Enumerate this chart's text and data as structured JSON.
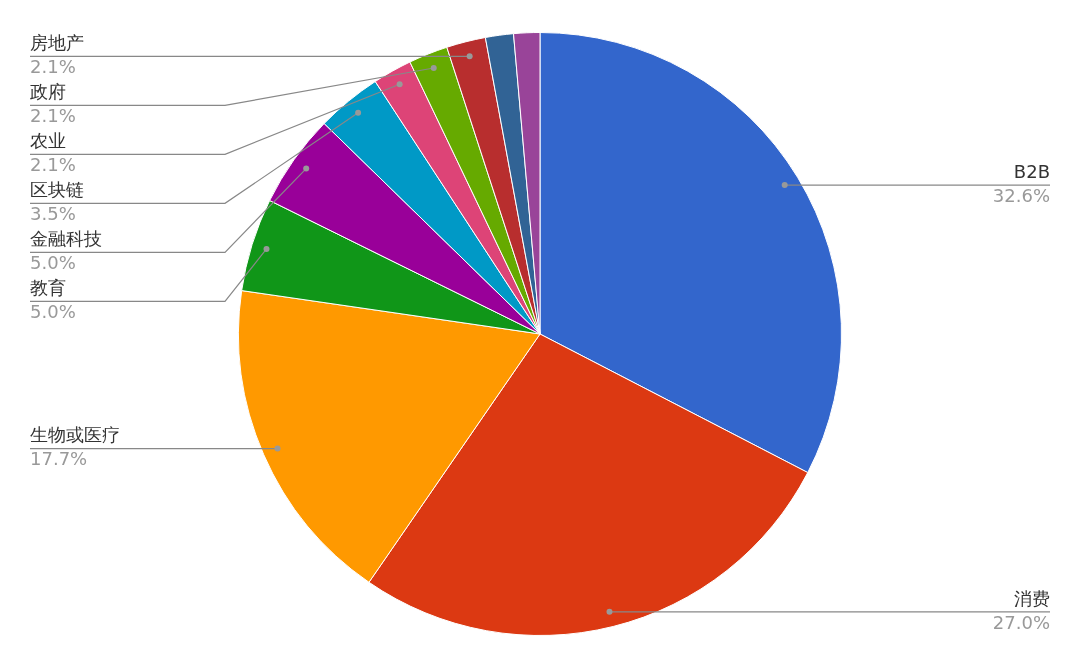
{
  "chart_data": {
    "type": "pie",
    "categories": [
      "B2B",
      "消费",
      "生物或医疗",
      "教育",
      "金融科技",
      "区块链",
      "农业",
      "政府",
      "房地产",
      null,
      null
    ],
    "values": [
      32.6,
      27.0,
      17.7,
      5.0,
      5.0,
      3.5,
      2.1,
      2.1,
      2.1,
      1.5,
      1.4
    ],
    "value_labels": [
      "32.6%",
      "27.0%",
      "17.7%",
      "5.0%",
      "5.0%",
      "3.5%",
      "2.1%",
      "2.1%",
      "2.1%",
      null,
      null
    ],
    "colors": [
      "#3366cc",
      "#dc3912",
      "#ff9900",
      "#109618",
      "#990099",
      "#0099c6",
      "#dd4477",
      "#66aa00",
      "#b82e2e",
      "#316395",
      "#994499"
    ],
    "legend": false
  }
}
